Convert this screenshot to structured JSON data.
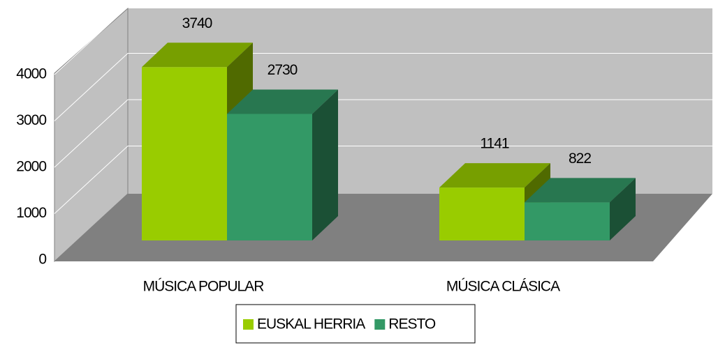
{
  "chart_data": {
    "type": "bar3d",
    "categories": [
      "MÚSICA POPULAR",
      "MÚSICA CLÁSICA"
    ],
    "series": [
      {
        "name": "EUSKAL HERRIA",
        "color": "#99cc00",
        "values": [
          3740,
          1141
        ]
      },
      {
        "name": "RESTO",
        "color": "#339966",
        "values": [
          2730,
          822
        ]
      }
    ],
    "ylim": [
      0,
      4000
    ],
    "yticks": [
      0,
      1000,
      2000,
      3000,
      4000
    ],
    "grid": true,
    "legend": "bottom"
  }
}
